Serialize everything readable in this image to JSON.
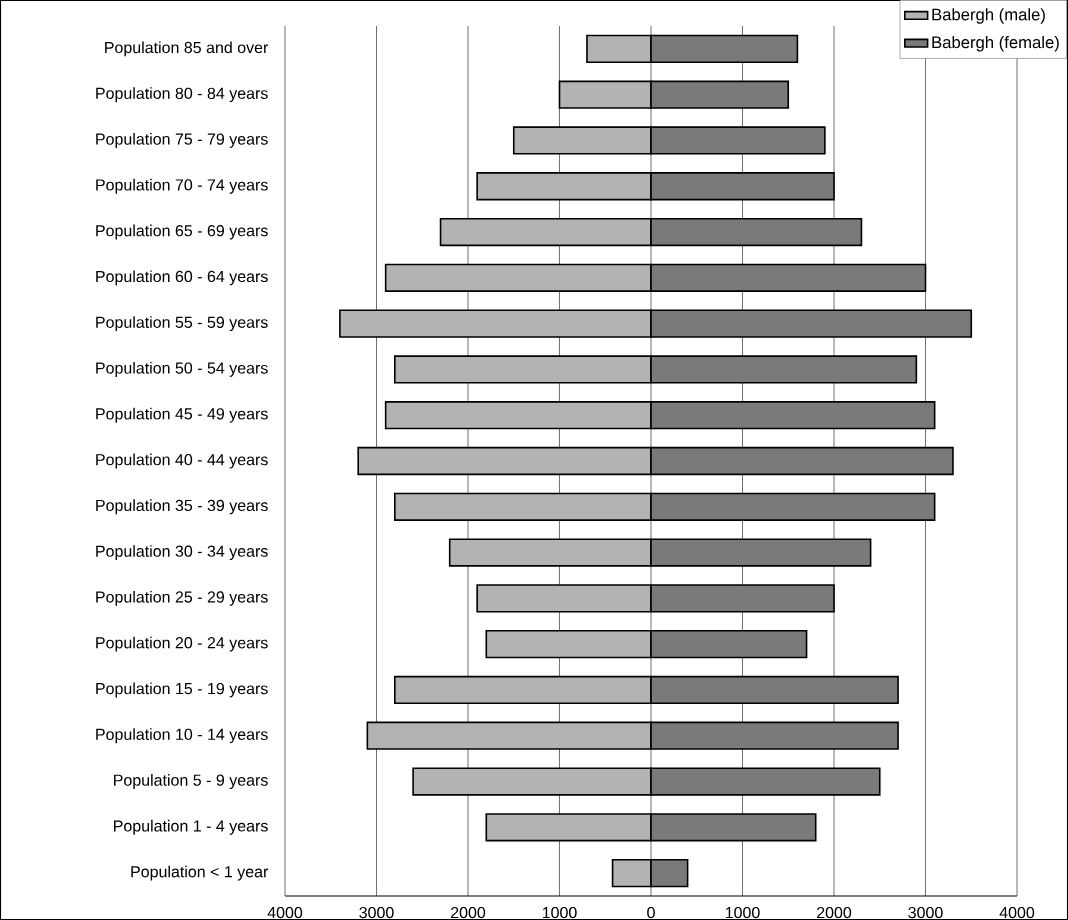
{
  "chart_data": {
    "type": "bar",
    "orientation": "horizontal",
    "categories": [
      "Population 85 and over",
      "Population 80 - 84 years",
      "Population 75 - 79 years",
      "Population 70 - 74 years",
      "Population 65 - 69 years",
      "Population 60 - 64 years",
      "Population 55 - 59 years",
      "Population 50 - 54 years",
      "Population 45 - 49 years",
      "Population 40 - 44 years",
      "Population 35 - 39 years",
      "Population 30 - 34 years",
      "Population 25 - 29 years",
      "Population 20 - 24 years",
      "Population 15 - 19 years",
      "Population 10 - 14 years",
      "Population 5 - 9 years",
      "Population 1 - 4 years",
      "Population < 1 year"
    ],
    "series": [
      {
        "name": "Babergh (male)",
        "color": "#b3b3b3",
        "values": [
          -700,
          -1000,
          -1500,
          -1900,
          -2300,
          -2900,
          -3400,
          -2800,
          -2900,
          -3200,
          -2800,
          -2200,
          -1900,
          -1800,
          -2800,
          -3100,
          -2600,
          -1800,
          -420
        ]
      },
      {
        "name": "Babergh (female)",
        "color": "#7a7a7a",
        "values": [
          1600,
          1500,
          1900,
          2000,
          2300,
          3000,
          3500,
          2900,
          3100,
          3300,
          3100,
          2400,
          2000,
          1700,
          2700,
          2700,
          2500,
          1800,
          400
        ]
      }
    ],
    "xlim": [
      -4000,
      4000
    ],
    "xticks": [
      {
        "value": -4000,
        "label": "4000"
      },
      {
        "value": -3000,
        "label": "3000"
      },
      {
        "value": -2000,
        "label": "2000"
      },
      {
        "value": -1000,
        "label": "1000"
      },
      0,
      1000,
      2000,
      3000,
      4000
    ],
    "stacked": true,
    "grid": "x",
    "legend": "top right"
  }
}
